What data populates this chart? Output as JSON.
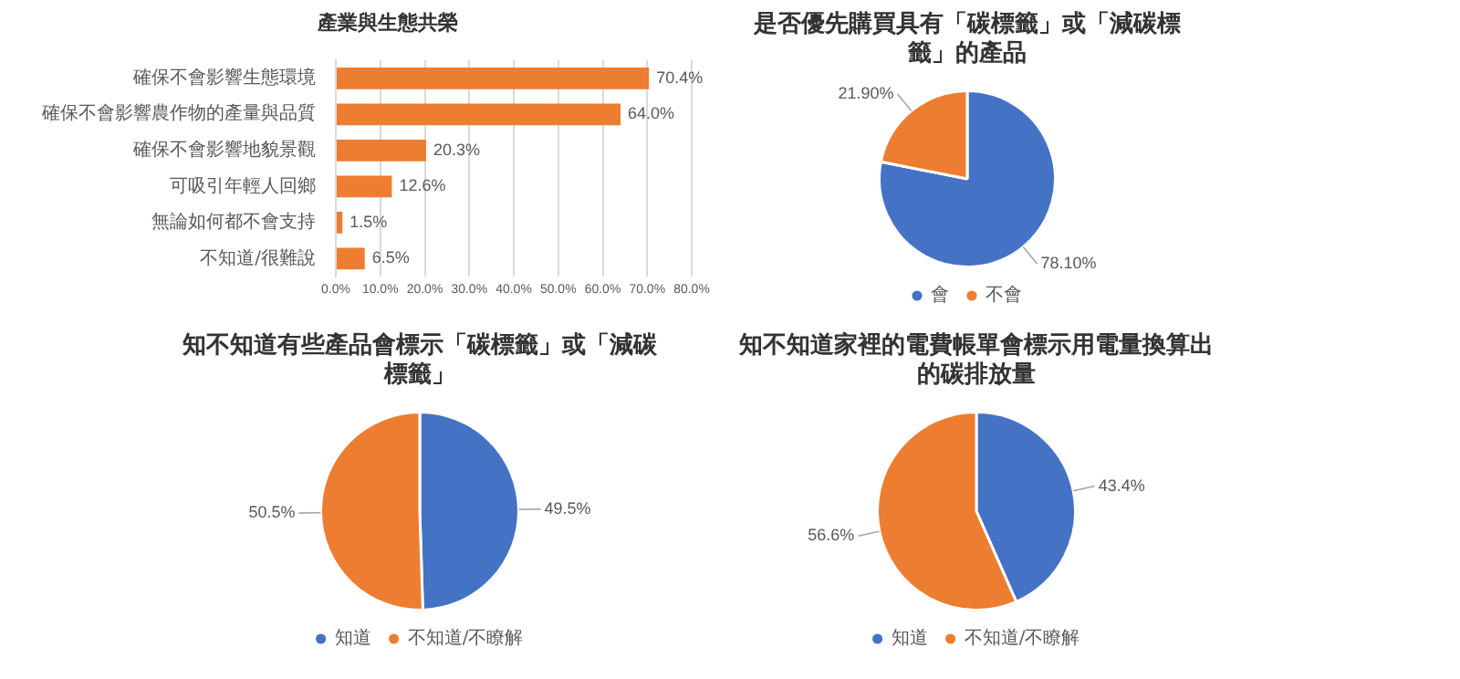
{
  "chart_data": [
    {
      "type": "bar",
      "orientation": "horizontal",
      "title": "產業與生態共榮",
      "categories": [
        "確保不會影響生態環境",
        "確保不會影響農作物的產量與品質",
        "確保不會影響地貌景觀",
        "可吸引年輕人回鄉",
        "無論如何都不會支持",
        "不知道/很難說"
      ],
      "values": [
        70.4,
        64.0,
        20.3,
        12.6,
        1.5,
        6.5
      ],
      "value_labels": [
        "70.4%",
        "64.0%",
        "20.3%",
        "12.6%",
        "1.5%",
        "6.5%"
      ],
      "color": "#ed7d31",
      "xlim": [
        0,
        80
      ],
      "xticks": [
        {
          "value": 0,
          "label": "0.0%"
        },
        {
          "value": 10,
          "label": "10.0%"
        },
        {
          "value": 20,
          "label": "20.0%"
        },
        {
          "value": 30,
          "label": "30.0%"
        },
        {
          "value": 40,
          "label": "40.0%"
        },
        {
          "value": 50,
          "label": "50.0%"
        },
        {
          "value": 60,
          "label": "60.0%"
        },
        {
          "value": 70,
          "label": "70.0%"
        },
        {
          "value": 80,
          "label": "80.0%"
        }
      ],
      "grid": "x",
      "legend": false
    },
    {
      "type": "pie",
      "title": "是否優先購買具有「碳標籤」或「減碳標籤」的產品",
      "categories": [
        "會",
        "不會"
      ],
      "values": [
        78.1,
        21.9
      ],
      "value_labels": [
        "78.10%",
        "21.90%"
      ],
      "colors": [
        "#4472c4",
        "#ed7d31"
      ],
      "legend": "bottom"
    },
    {
      "type": "pie",
      "title": "知不知道有些產品會標示「碳標籤」或「減碳標籤」",
      "categories": [
        "知道",
        "不知道/不瞭解"
      ],
      "values": [
        49.5,
        50.5
      ],
      "value_labels": [
        "49.5%",
        "50.5%"
      ],
      "colors": [
        "#4472c4",
        "#ed7d31"
      ],
      "legend": "bottom"
    },
    {
      "type": "pie",
      "title": "知不知道家裡的電費帳單會標示用電量換算出的碳排放量",
      "categories": [
        "知道",
        "不知道/不瞭解"
      ],
      "values": [
        43.4,
        56.6
      ],
      "value_labels": [
        "43.4%",
        "56.6%"
      ],
      "colors": [
        "#4472c4",
        "#ed7d31"
      ],
      "legend": "bottom"
    }
  ]
}
